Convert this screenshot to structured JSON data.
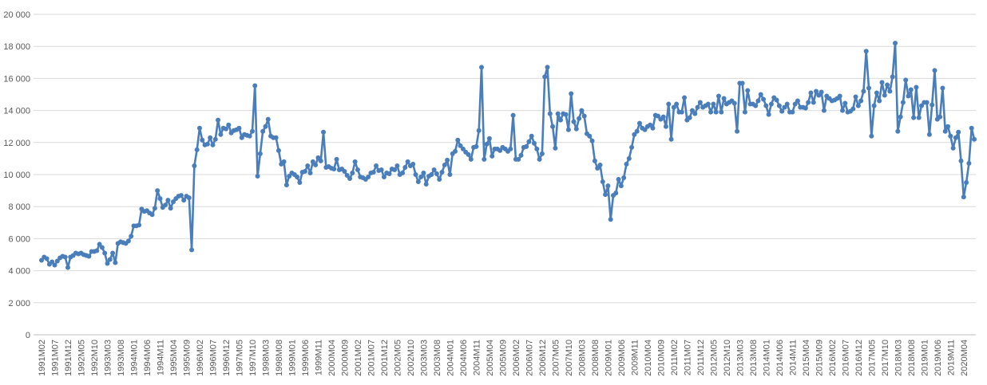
{
  "chart_data": {
    "type": "line",
    "categories": [
      "1991M02",
      null,
      null,
      null,
      null,
      "1991M07",
      null,
      null,
      null,
      null,
      "1991M12",
      null,
      null,
      null,
      null,
      "1992M05",
      null,
      null,
      null,
      null,
      "1992M10",
      null,
      null,
      null,
      null,
      "1993M03",
      null,
      null,
      null,
      null,
      "1993M08",
      null,
      null,
      null,
      null,
      "1994M01",
      null,
      null,
      null,
      null,
      "1994M06",
      null,
      null,
      null,
      null,
      "1994M11",
      null,
      null,
      null,
      null,
      "1995M04",
      null,
      null,
      null,
      null,
      "1995M09",
      null,
      null,
      null,
      null,
      "1996M02",
      null,
      null,
      null,
      null,
      "1996M07",
      null,
      null,
      null,
      null,
      "1996M12",
      null,
      null,
      null,
      null,
      "1997M05",
      null,
      null,
      null,
      null,
      "1997M10",
      null,
      null,
      null,
      null,
      "1998M03",
      null,
      null,
      null,
      null,
      "1998M08",
      null,
      null,
      null,
      null,
      "1999M01",
      null,
      null,
      null,
      null,
      "1999M06",
      null,
      null,
      null,
      null,
      "1999M11",
      null,
      null,
      null,
      null,
      "2000M04",
      null,
      null,
      null,
      null,
      "2000M09",
      null,
      null,
      null,
      null,
      "2001M02",
      null,
      null,
      null,
      null,
      "2001M07",
      null,
      null,
      null,
      null,
      "2001M12",
      null,
      null,
      null,
      null,
      "2002M05",
      null,
      null,
      null,
      null,
      "2002M10",
      null,
      null,
      null,
      null,
      "2003M03",
      null,
      null,
      null,
      null,
      "2003M08",
      null,
      null,
      null,
      null,
      "2004M01",
      null,
      null,
      null,
      null,
      "2004M06",
      null,
      null,
      null,
      null,
      "2004M11",
      null,
      null,
      null,
      null,
      "2005M04",
      null,
      null,
      null,
      null,
      "2005M09",
      null,
      null,
      null,
      null,
      "2006M02",
      null,
      null,
      null,
      null,
      "2006M07",
      null,
      null,
      null,
      null,
      "2006M12",
      null,
      null,
      null,
      null,
      "2007M05",
      null,
      null,
      null,
      null,
      "2007M10",
      null,
      null,
      null,
      null,
      "2008M03",
      null,
      null,
      null,
      null,
      "2008M08",
      null,
      null,
      null,
      null,
      "2009M01",
      null,
      null,
      null,
      null,
      "2009M06",
      null,
      null,
      null,
      null,
      "2009M11",
      null,
      null,
      null,
      null,
      "2010M04",
      null,
      null,
      null,
      null,
      "2010M09",
      null,
      null,
      null,
      null,
      "2011M02",
      null,
      null,
      null,
      null,
      "2011M07",
      null,
      null,
      null,
      null,
      "2011M12",
      null,
      null,
      null,
      null,
      "2012M05",
      null,
      null,
      null,
      null,
      "2012M10",
      null,
      null,
      null,
      null,
      "2013M03",
      null,
      null,
      null,
      null,
      "2013M08",
      null,
      null,
      null,
      null,
      "2014M01",
      null,
      null,
      null,
      null,
      "2014M06",
      null,
      null,
      null,
      null,
      "2014M11",
      null,
      null,
      null,
      null,
      "2015M04",
      null,
      null,
      null,
      null,
      "2015M09",
      null,
      null,
      null,
      null,
      "2016M02",
      null,
      null,
      null,
      null,
      "2016M07",
      null,
      null,
      null,
      null,
      "2016M12",
      null,
      null,
      null,
      null,
      "2017M05",
      null,
      null,
      null,
      null,
      "2017M10",
      null,
      null,
      null,
      null,
      "2018M03",
      null,
      null,
      null,
      null,
      "2018M08",
      null,
      null,
      null,
      null,
      "2019M01",
      null,
      null,
      null,
      null,
      "2019M06",
      null,
      null,
      null,
      null,
      "2019M11",
      null,
      null,
      null,
      null,
      "2020M04",
      null,
      null,
      null,
      null
    ],
    "values": [
      4650,
      4850,
      4750,
      4400,
      4550,
      4350,
      4600,
      4800,
      4900,
      4850,
      4200,
      4850,
      4950,
      5100,
      5050,
      5100,
      5000,
      4950,
      4900,
      5200,
      5200,
      5250,
      5650,
      5450,
      5100,
      4450,
      4700,
      5100,
      4500,
      5700,
      5800,
      5750,
      5700,
      5850,
      6150,
      6800,
      6800,
      6850,
      7850,
      7700,
      7750,
      7600,
      7500,
      7900,
      9000,
      8500,
      7950,
      8100,
      8400,
      7900,
      8300,
      8500,
      8650,
      8700,
      8400,
      8650,
      8550,
      5300,
      10550,
      11550,
      12900,
      12150,
      11850,
      11900,
      12300,
      11850,
      12200,
      13400,
      12500,
      12900,
      12850,
      13100,
      12600,
      12750,
      12800,
      12900,
      12300,
      12500,
      12450,
      12400,
      12700,
      15550,
      9900,
      11300,
      12700,
      13000,
      13450,
      12400,
      12300,
      12300,
      11500,
      10650,
      10800,
      9350,
      9900,
      10100,
      10000,
      9850,
      9500,
      10150,
      10200,
      10550,
      10100,
      10800,
      10600,
      11050,
      10850,
      12650,
      10450,
      10500,
      10400,
      10350,
      10950,
      10300,
      10350,
      10200,
      9950,
      9750,
      10100,
      10800,
      10300,
      9850,
      9800,
      9700,
      9850,
      10100,
      10150,
      10550,
      10250,
      10300,
      9850,
      10100,
      10050,
      10350,
      10300,
      10550,
      10000,
      10100,
      10450,
      10800,
      10550,
      10650,
      10000,
      9550,
      9850,
      10100,
      9400,
      9900,
      10000,
      10300,
      10050,
      9700,
      10150,
      10600,
      10900,
      10000,
      11300,
      11450,
      12150,
      11800,
      11600,
      11400,
      11250,
      10950,
      11700,
      11750,
      12750,
      16700,
      10950,
      11900,
      12250,
      11150,
      11600,
      11600,
      11500,
      11700,
      11600,
      11450,
      11600,
      13700,
      10950,
      10950,
      11200,
      11700,
      11750,
      12050,
      12400,
      11950,
      11600,
      10950,
      11300,
      16100,
      16700,
      13800,
      13000,
      11650,
      13800,
      13400,
      13800,
      13750,
      12800,
      15050,
      13300,
      12850,
      13500,
      14000,
      13650,
      12550,
      12400,
      12100,
      10850,
      10400,
      10600,
      9550,
      8750,
      9300,
      7200,
      8700,
      8850,
      9700,
      9300,
      9800,
      10650,
      11000,
      11700,
      12500,
      12700,
      13200,
      12900,
      12800,
      13000,
      13100,
      12900,
      13700,
      13650,
      13450,
      13600,
      13000,
      14400,
      12200,
      14200,
      14400,
      13900,
      13900,
      14800,
      13400,
      13550,
      14000,
      13800,
      14200,
      14500,
      14200,
      14300,
      14400,
      13900,
      14400,
      13900,
      14900,
      13900,
      14750,
      14400,
      14500,
      14600,
      14450,
      12700,
      15700,
      15700,
      13900,
      15250,
      14400,
      14400,
      14300,
      14600,
      15000,
      14700,
      14300,
      13750,
      14400,
      14800,
      14650,
      14300,
      13950,
      14200,
      14400,
      13900,
      13900,
      14400,
      14600,
      14200,
      14200,
      14150,
      14500,
      15100,
      14500,
      15200,
      14950,
      15150,
      14000,
      14900,
      14750,
      14600,
      14650,
      14750,
      14900,
      14000,
      14450,
      13900,
      13950,
      14100,
      14850,
      14300,
      14600,
      15200,
      17700,
      15400,
      12400,
      14300,
      15100,
      14600,
      15750,
      14950,
      15600,
      15200,
      16100,
      18200,
      12700,
      13600,
      14500,
      15900,
      14900,
      15300,
      13550,
      15450,
      13550,
      14300,
      14500,
      14500,
      12500,
      14350,
      16500,
      13450,
      13600,
      15400,
      12700,
      13000,
      12400,
      11650,
      12300,
      12650,
      10850,
      8600,
      9500,
      10700,
      12900,
      12200
    ],
    "color": "#4a7ebb",
    "ylim": [
      0,
      20000
    ],
    "yticks": [
      0,
      {
        "value": 2000,
        "label": "2 000"
      },
      {
        "value": 4000,
        "label": "4 000"
      },
      {
        "value": 6000,
        "label": "6 000"
      },
      {
        "value": 8000,
        "label": "8 000"
      },
      {
        "value": 10000,
        "label": "10 000"
      },
      {
        "value": 12000,
        "label": "12 000"
      },
      {
        "value": 14000,
        "label": "14 000"
      },
      {
        "value": 16000,
        "label": "16 000"
      },
      {
        "value": 18000,
        "label": "18 000"
      },
      {
        "value": 20000,
        "label": "20 000"
      }
    ],
    "grid": true
  }
}
